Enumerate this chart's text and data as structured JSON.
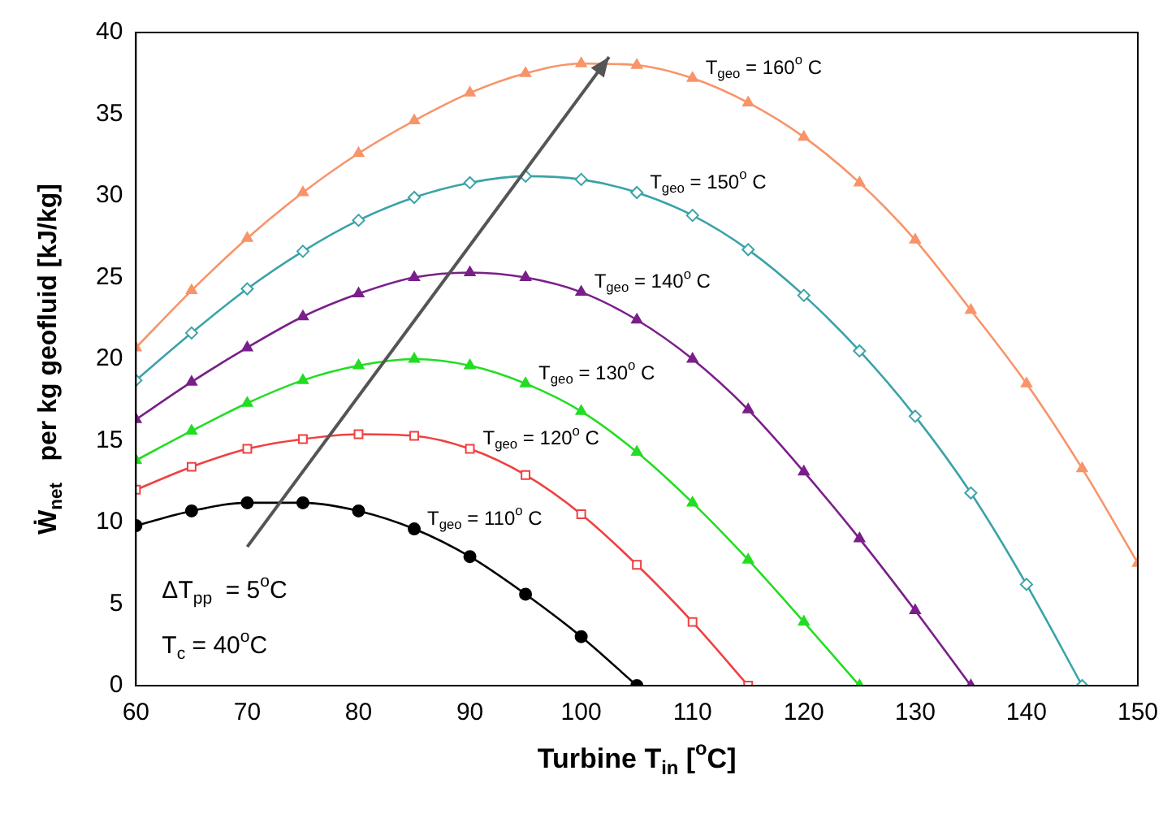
{
  "chart_data": {
    "type": "line",
    "xlabel": "Turbine T$_{in}$ [$^{o}$C]",
    "ylabel": "Ẇ$_{net}$   per kg geofluid [kJ/kg]",
    "xlim": [
      60,
      150
    ],
    "xticks": [
      60,
      70,
      80,
      90,
      100,
      110,
      120,
      130,
      140,
      150
    ],
    "ylim": [
      0,
      40
    ],
    "yticks": [
      0,
      5,
      10,
      15,
      20,
      25,
      30,
      35,
      40
    ],
    "grid": false,
    "legend": false,
    "line_style": "solid",
    "series": [
      {
        "name": "T$_{geo}$ = 110$^{o}$ C",
        "color": "#000000",
        "marker": "circle",
        "x": [
          60,
          65,
          70,
          75,
          80,
          85,
          90,
          95,
          100,
          105
        ],
        "values": [
          9.8,
          10.7,
          11.2,
          11.2,
          10.7,
          9.6,
          7.9,
          5.6,
          3.0,
          0
        ]
      },
      {
        "name": "T$_{geo}$ = 120$^{o}$ C",
        "color": "#f04040",
        "marker": "square",
        "x": [
          60,
          65,
          70,
          75,
          80,
          85,
          90,
          95,
          100,
          105,
          110,
          115
        ],
        "values": [
          12.0,
          13.4,
          14.5,
          15.1,
          15.4,
          15.3,
          14.5,
          12.9,
          10.5,
          7.4,
          3.9,
          0
        ]
      },
      {
        "name": "T$_{geo}$ = 130$^{o}$ C",
        "color": "#22dd22",
        "marker": "triangle",
        "x": [
          60,
          65,
          70,
          75,
          80,
          85,
          90,
          95,
          100,
          105,
          110,
          115,
          120,
          125
        ],
        "values": [
          13.8,
          15.6,
          17.3,
          18.7,
          19.6,
          20.0,
          19.6,
          18.5,
          16.8,
          14.3,
          11.2,
          7.7,
          3.9,
          0
        ]
      },
      {
        "name": "T$_{geo}$ = 140$^{o}$ C",
        "color": "#7a1f8a",
        "marker": "triangle",
        "x": [
          60,
          65,
          70,
          75,
          80,
          85,
          90,
          95,
          100,
          105,
          110,
          115,
          120,
          125,
          130,
          135
        ],
        "values": [
          16.3,
          18.6,
          20.7,
          22.6,
          24.0,
          25.0,
          25.3,
          25.0,
          24.1,
          22.4,
          20.0,
          16.9,
          13.1,
          9.0,
          4.6,
          0
        ]
      },
      {
        "name": "T$_{geo}$ = 150$^{o}$ C",
        "color": "#3aa3a8",
        "marker": "diamond",
        "x": [
          60,
          65,
          70,
          75,
          80,
          85,
          90,
          95,
          100,
          105,
          110,
          115,
          120,
          125,
          130,
          135,
          140,
          145
        ],
        "values": [
          18.7,
          21.6,
          24.3,
          26.6,
          28.5,
          29.9,
          30.8,
          31.2,
          31.0,
          30.2,
          28.8,
          26.7,
          23.9,
          20.5,
          16.5,
          11.8,
          6.2,
          0
        ]
      },
      {
        "name": "T$_{geo}$ = 160$^{o}$ C",
        "color": "#f8946a",
        "marker": "triangle",
        "x": [
          60,
          65,
          70,
          75,
          80,
          85,
          90,
          95,
          100,
          105,
          110,
          115,
          120,
          125,
          130,
          135,
          140,
          145,
          150
        ],
        "values": [
          20.7,
          24.2,
          27.4,
          30.2,
          32.6,
          34.6,
          36.3,
          37.5,
          38.1,
          38.0,
          37.2,
          35.7,
          33.6,
          30.8,
          27.3,
          23.0,
          18.5,
          13.3,
          7.5
        ]
      }
    ],
    "annotations": [
      "ΔT$_{pp}$  = 5$^{o}$C",
      "T$_{c}$ = 40$^{o}$C"
    ]
  }
}
